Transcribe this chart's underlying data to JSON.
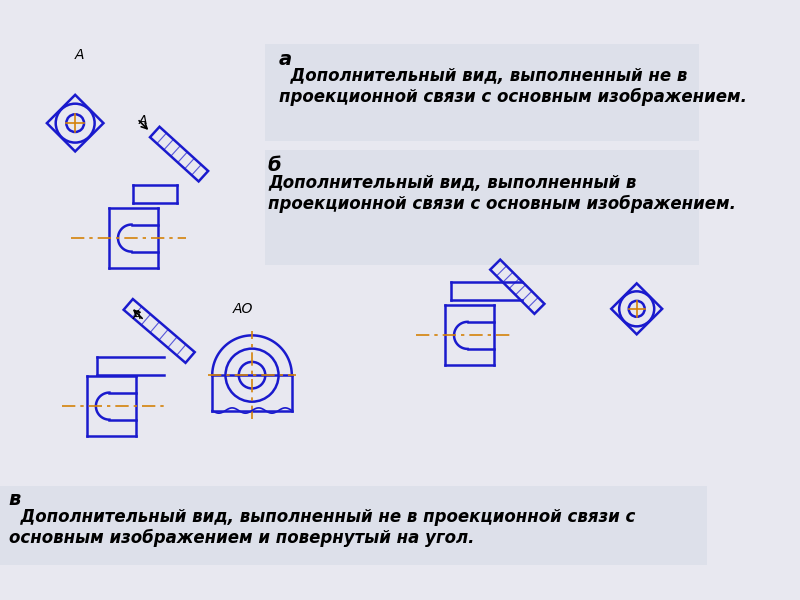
{
  "bg_color": "#e8e8f0",
  "text_panel_color": "#dde0ea",
  "line_color": "#1a1acd",
  "center_line_color": "#d4820a",
  "label_a": "а",
  "label_b": "б",
  "label_v": "в",
  "text_a": "  Дополнительный вид, выполненный не в\nпроекционной связи с основным изображением.",
  "text_b": "Дополнительный вид, выполненный в\nпроекционной связи с основным изображением.",
  "text_v": "  Дополнительный вид, выполненный не в проекционной связи с\nосновным изображением и повернутый на угол.",
  "font_size_label": 14,
  "font_size_text": 12,
  "font_size_small": 9
}
